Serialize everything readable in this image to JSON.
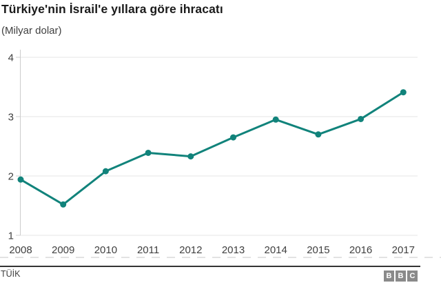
{
  "header": {
    "title": "Türkiye'nin İsrail'e yıllara göre ihracatı",
    "subtitle": "(Milyar dolar)"
  },
  "chart_data": {
    "type": "line",
    "title": "Türkiye'nin İsrail'e yıllara göre ihracatı",
    "subtitle": "(Milyar dolar)",
    "categories": [
      2008,
      2009,
      2010,
      2011,
      2012,
      2013,
      2014,
      2015,
      2016,
      2017
    ],
    "series": [
      {
        "name": "İhracat (milyar dolar)",
        "values": [
          1.94,
          1.52,
          2.08,
          2.39,
          2.33,
          2.65,
          2.95,
          2.7,
          2.96,
          3.41
        ]
      }
    ],
    "xlabel": "",
    "ylabel": "",
    "ylim": [
      1,
      4
    ],
    "yticks": [
      1,
      2,
      3,
      4
    ],
    "grid": "horizontal",
    "legend": "none",
    "marker": "circle"
  },
  "colors": {
    "line": "#11837B",
    "grid": "#e4e4e4",
    "axis": "#cccccc",
    "label": "#404040",
    "footer_rule": "#333333",
    "bbc_gray": "#8a8a8a"
  },
  "footer": {
    "source": "TÜİK",
    "logo": [
      "B",
      "B",
      "C"
    ]
  }
}
